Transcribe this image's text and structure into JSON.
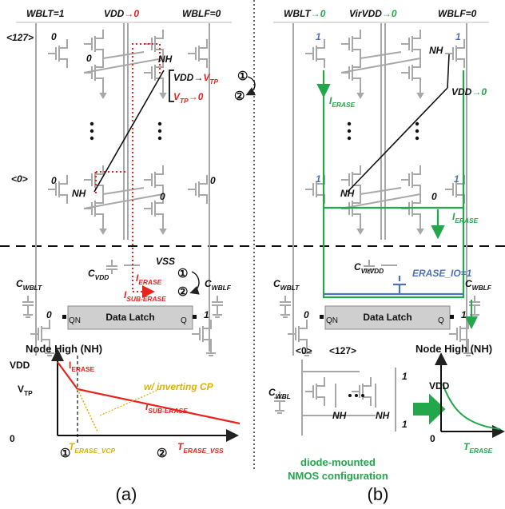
{
  "panel_a": {
    "header": {
      "wblt": "WBLT=1",
      "vdd": "VDD",
      "vdd_to": "→0",
      "wblf": "WBLF=0"
    },
    "top_row": {
      "index": "<127>",
      "wl": "0",
      "node": "0",
      "nh": "NH"
    },
    "steps": {
      "s1_from": "VDD→",
      "s1_to": {
        "main": "V",
        "sub": "TP"
      },
      "s1_mark": "①",
      "s2_from": {
        "main": "V",
        "sub": "TP"
      },
      "s2_to": "→0",
      "s2_mark": "②"
    },
    "bottom_row": {
      "index": "<0>",
      "wl": "0",
      "wr": "0",
      "nh": "NH",
      "node": "0"
    },
    "c_vdd": {
      "main": "C",
      "sub": "VDD"
    },
    "vss": "VSS",
    "i_erase": {
      "main": "I",
      "sub": "ERASE"
    },
    "i_erase_mark": "①",
    "i_sub": {
      "main": "I",
      "sub": "SUB-ERASE"
    },
    "i_sub_mark": "②",
    "c_wblt": {
      "main": "C",
      "sub": "WBLT"
    },
    "c_wblf": {
      "main": "C",
      "sub": "WBLF"
    },
    "latch": {
      "left": "0",
      "qn": "QN",
      "title": "Data Latch",
      "q": "Q",
      "right": "1"
    },
    "graph": {
      "title": "Node High (NH)",
      "vdd": "VDD",
      "vtp": {
        "main": "V",
        "sub": "TP"
      },
      "zero": "0",
      "i_erase": {
        "main": "I",
        "sub": "ERASE"
      },
      "cp": "w/ inverting CP",
      "i_sub": {
        "main": "I",
        "sub": "SUB-ERASE"
      },
      "t_vcp": {
        "main": "T",
        "sub": "ERASE_VCP"
      },
      "t_vss": {
        "main": "T",
        "sub": "ERASE_VSS"
      },
      "m1": "①",
      "m2": "②"
    },
    "caption": "(a)"
  },
  "panel_b": {
    "header": {
      "wblt": "WBLT",
      "wblt_to": "→0",
      "virvdd": "VirVDD",
      "virvdd_to": "→0",
      "wblf": "WBLF=0"
    },
    "top_row": {
      "wl": "1",
      "wr": "1",
      "nh": "NH",
      "vdd": "VDD",
      "vdd_to": "→0",
      "i_erase": {
        "main": "I",
        "sub": "ERASE"
      }
    },
    "bottom_row": {
      "wl": "1",
      "wr": "1",
      "nh": "NH",
      "node": "0",
      "i_erase": {
        "main": "I",
        "sub": "ERASE"
      }
    },
    "c_virvdd": {
      "main": "C",
      "sub": "VirVDD"
    },
    "erase_io": "ERASE_IO=1",
    "c_wblt": {
      "main": "C",
      "sub": "WBLT"
    },
    "c_wblf": {
      "main": "C",
      "sub": "WBLF"
    },
    "latch": {
      "left": "0",
      "qn": "QN",
      "title": "Data Latch",
      "q": "Q",
      "right": "1"
    },
    "diode": {
      "index0": "<0>",
      "index127": "<127>",
      "c_wbl": {
        "main": "C",
        "sub": "WBL"
      },
      "top": "1",
      "bottom": "1",
      "nh_left": "NH",
      "nh_right": "NH",
      "caption1": "diode-mounted",
      "caption2": "NMOS configuration"
    },
    "graph": {
      "title": "Node High (NH)",
      "vdd": "VDD",
      "zero": "0",
      "t_erase": {
        "main": "T",
        "sub": "ERASE"
      }
    },
    "caption": "(b)"
  }
}
